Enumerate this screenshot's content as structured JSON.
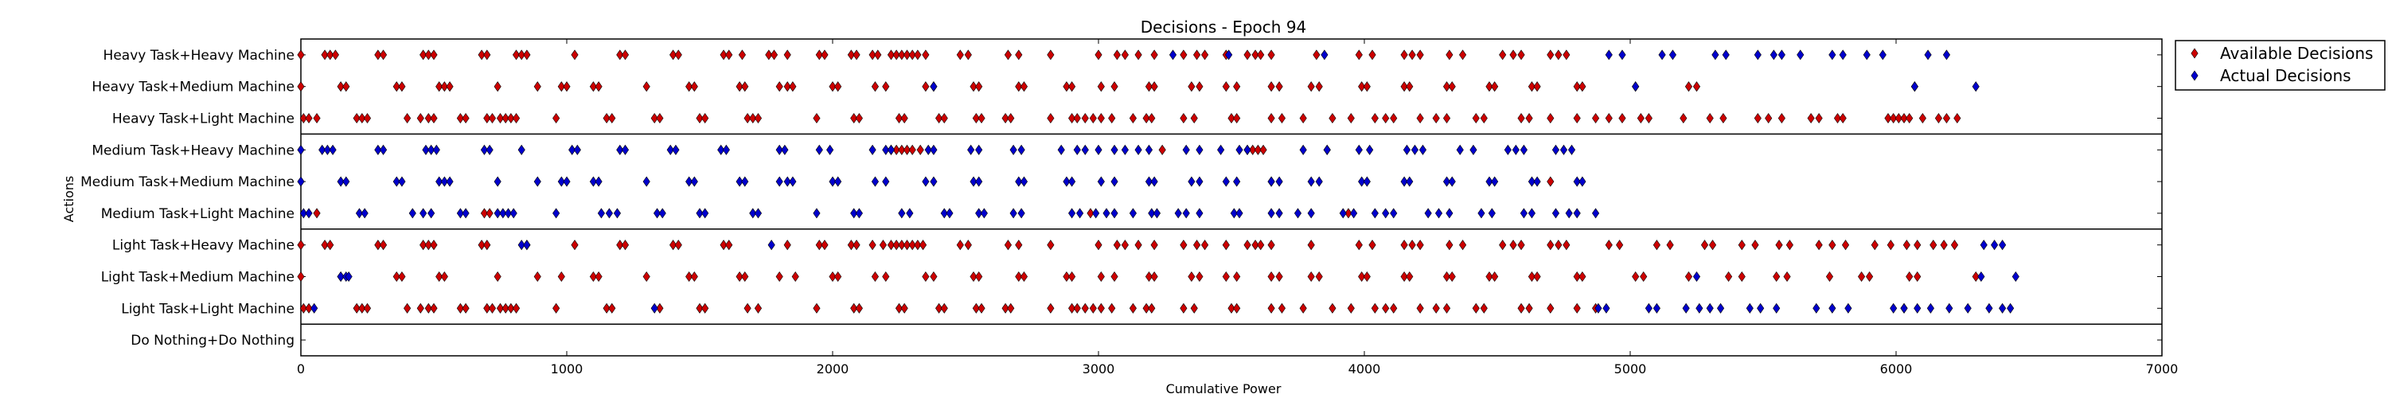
{
  "chart_data": {
    "type": "scatter",
    "title": "Decisions - Epoch 94",
    "xlabel": "Cumulative Power",
    "ylabel": "Actions",
    "xlim": [
      0,
      7000
    ],
    "xticks": [
      "0",
      "1000",
      "2000",
      "3000",
      "4000",
      "5000",
      "6000",
      "7000"
    ],
    "grid": false,
    "legend_position": "outside-right-top",
    "categories": [
      "Heavy Task+Heavy Machine",
      "Heavy Task+Medium Machine",
      "Heavy Task+Light Machine",
      "Medium Task+Heavy Machine",
      "Medium Task+Medium Machine",
      "Medium Task+Light Machine",
      "Light Task+Heavy Machine",
      "Light Task+Medium Machine",
      "Light Task+Light Machine",
      "Do Nothing+Do Nothing"
    ],
    "group_separators_after": [
      "Heavy Task+Light Machine",
      "Medium Task+Light Machine",
      "Light Task+Light Machine"
    ],
    "series": [
      {
        "name": "Available Decisions",
        "color": "#cc0000",
        "marker": "diamond",
        "rows": [
          [
            0,
            90,
            110,
            130,
            290,
            310,
            460,
            480,
            500,
            680,
            700,
            810,
            830,
            850,
            1030,
            1200,
            1220,
            1400,
            1420,
            1590,
            1610,
            1660,
            1760,
            1780,
            1830,
            1950,
            1970,
            2070,
            2090,
            2150,
            2170,
            2220,
            2240,
            2260,
            2280,
            2300,
            2320,
            2350,
            2480,
            2510,
            2660,
            2700,
            2820,
            3000,
            3070,
            3100,
            3150,
            3210,
            3320,
            3370,
            3400,
            3480,
            3560,
            3590,
            3610,
            3650,
            3820,
            3980,
            4030,
            4150,
            4180,
            4210,
            4320,
            4370,
            4520,
            4560,
            4590,
            4700,
            4730,
            4760
          ],
          [
            0,
            150,
            170,
            360,
            380,
            520,
            540,
            560,
            740,
            890,
            980,
            1000,
            1100,
            1120,
            1300,
            1460,
            1480,
            1650,
            1670,
            1800,
            1830,
            1850,
            2000,
            2020,
            2160,
            2200,
            2350,
            2380,
            2530,
            2550,
            2700,
            2720,
            2880,
            2900,
            3010,
            3060,
            3190,
            3210,
            3350,
            3380,
            3480,
            3520,
            3650,
            3680,
            3800,
            3830,
            3990,
            4010,
            4150,
            4170,
            4310,
            4330,
            4470,
            4490,
            4630,
            4650,
            4800,
            4820,
            5020,
            5220,
            5250,
            6070
          ],
          [
            10,
            30,
            60,
            210,
            230,
            250,
            400,
            450,
            480,
            500,
            600,
            620,
            700,
            720,
            750,
            770,
            790,
            810,
            960,
            1150,
            1170,
            1330,
            1350,
            1500,
            1520,
            1680,
            1700,
            1720,
            1940,
            2080,
            2100,
            2250,
            2270,
            2400,
            2420,
            2540,
            2560,
            2650,
            2670,
            2820,
            2900,
            2920,
            2950,
            2980,
            3010,
            3050,
            3130,
            3180,
            3200,
            3320,
            3360,
            3500,
            3520,
            3650,
            3690,
            3770,
            3880,
            3950,
            4040,
            4080,
            4110,
            4210,
            4270,
            4310,
            4420,
            4450,
            4590,
            4620,
            4700,
            4800,
            4870,
            4920,
            4970,
            5040,
            5070,
            5200,
            5300,
            5350,
            5480,
            5520,
            5570,
            5680,
            5710,
            5780,
            5800,
            5970,
            5990,
            6010,
            6030,
            6050,
            6100,
            6160,
            6190,
            6230
          ],
          [
            2220,
            2240,
            2260,
            2280,
            2300,
            2330,
            3240,
            3560,
            3580,
            3600,
            3620,
            3860
          ],
          [
            3650,
            4700
          ],
          [
            60,
            690,
            710,
            2970,
            3940
          ],
          [
            0,
            90,
            110,
            290,
            310,
            460,
            480,
            500,
            680,
            700,
            850,
            1030,
            1200,
            1220,
            1400,
            1420,
            1590,
            1610,
            1830,
            1950,
            1970,
            2070,
            2090,
            2150,
            2190,
            2220,
            2240,
            2260,
            2280,
            2300,
            2320,
            2340,
            2480,
            2510,
            2660,
            2700,
            2820,
            3000,
            3070,
            3100,
            3150,
            3210,
            3320,
            3370,
            3400,
            3480,
            3560,
            3590,
            3610,
            3650,
            3800,
            3980,
            4030,
            4150,
            4180,
            4210,
            4320,
            4370,
            4520,
            4560,
            4590,
            4700,
            4730,
            4760,
            4920,
            4960,
            5100,
            5150,
            5280,
            5310,
            5420,
            5470,
            5560,
            5600,
            5710,
            5760,
            5810,
            5920,
            5980,
            6040,
            6080,
            6140,
            6180,
            6220
          ],
          [
            0,
            150,
            360,
            380,
            520,
            540,
            740,
            890,
            980,
            1100,
            1120,
            1300,
            1460,
            1480,
            1650,
            1670,
            1800,
            1860,
            2000,
            2020,
            2160,
            2200,
            2350,
            2380,
            2530,
            2550,
            2700,
            2720,
            2880,
            2900,
            3010,
            3060,
            3190,
            3210,
            3350,
            3380,
            3480,
            3520,
            3650,
            3680,
            3800,
            3830,
            3990,
            4010,
            4150,
            4170,
            4310,
            4330,
            4470,
            4490,
            4630,
            4650,
            4800,
            4820,
            5020,
            5050,
            5220,
            5370,
            5420,
            5550,
            5590,
            5750,
            5870,
            5900,
            6050,
            6080,
            6300
          ],
          [
            10,
            30,
            210,
            230,
            250,
            400,
            450,
            480,
            500,
            600,
            620,
            700,
            720,
            750,
            770,
            790,
            810,
            960,
            1150,
            1170,
            1350,
            1500,
            1520,
            1680,
            1720,
            1940,
            2080,
            2100,
            2250,
            2270,
            2400,
            2420,
            2540,
            2560,
            2650,
            2670,
            2820,
            2900,
            2920,
            2950,
            2980,
            3010,
            3050,
            3130,
            3180,
            3200,
            3320,
            3360,
            3500,
            3520,
            3650,
            3690,
            3770,
            3880,
            3950,
            4040,
            4080,
            4110,
            4210,
            4270,
            4310,
            4420,
            4450,
            4590,
            4620,
            4700,
            4800,
            4870,
            6030
          ],
          []
        ]
      },
      {
        "name": "Actual Decisions",
        "color": "#0000cc",
        "marker": "diamond",
        "rows": [
          [
            3280,
            3490,
            3850,
            4920,
            4970,
            5120,
            5160,
            5320,
            5360,
            5480,
            5540,
            5570,
            5640,
            5760,
            5800,
            5890,
            5950,
            6120,
            6190
          ],
          [
            2380,
            5020,
            6070,
            6300
          ],
          [],
          [
            0,
            80,
            100,
            120,
            290,
            310,
            470,
            490,
            510,
            690,
            710,
            830,
            1020,
            1040,
            1200,
            1220,
            1390,
            1410,
            1580,
            1600,
            1800,
            1820,
            1950,
            1990,
            2150,
            2200,
            2220,
            2360,
            2380,
            2520,
            2550,
            2680,
            2710,
            2860,
            2920,
            2950,
            3000,
            3060,
            3100,
            3150,
            3190,
            3330,
            3380,
            3460,
            3530,
            3560,
            3770,
            3860,
            3980,
            4020,
            4160,
            4190,
            4220,
            4360,
            4410,
            4540,
            4570,
            4600,
            4720,
            4750,
            4780
          ],
          [
            0,
            150,
            170,
            360,
            380,
            520,
            540,
            560,
            740,
            890,
            980,
            1000,
            1100,
            1120,
            1300,
            1460,
            1480,
            1650,
            1670,
            1800,
            1830,
            1850,
            2000,
            2020,
            2160,
            2200,
            2350,
            2380,
            2530,
            2550,
            2700,
            2720,
            2880,
            2900,
            3010,
            3060,
            3190,
            3210,
            3350,
            3380,
            3480,
            3520,
            3650,
            3680,
            3800,
            3830,
            3990,
            4010,
            4150,
            4170,
            4310,
            4330,
            4470,
            4490,
            4630,
            4650,
            4800,
            4820
          ],
          [
            10,
            30,
            220,
            240,
            420,
            460,
            490,
            600,
            620,
            740,
            760,
            780,
            800,
            960,
            1130,
            1160,
            1190,
            1340,
            1360,
            1500,
            1520,
            1700,
            1720,
            1940,
            2080,
            2100,
            2260,
            2290,
            2420,
            2440,
            2550,
            2570,
            2680,
            2710,
            2900,
            2930,
            2990,
            3030,
            3060,
            3130,
            3200,
            3220,
            3300,
            3330,
            3380,
            3510,
            3530,
            3650,
            3680,
            3750,
            3800,
            3920,
            3960,
            4040,
            4080,
            4110,
            4240,
            4280,
            4320,
            4440,
            4480,
            4600,
            4630,
            4720,
            4770,
            4800,
            4870
          ],
          [
            830,
            850,
            1770,
            6330,
            6370,
            6400
          ],
          [
            150,
            170,
            180,
            5250,
            6320,
            6450
          ],
          [
            50,
            1330,
            4880,
            4910,
            5070,
            5100,
            5210,
            5260,
            5300,
            5340,
            5450,
            5490,
            5550,
            5700,
            5760,
            5820,
            5990,
            6030,
            6080,
            6130,
            6200,
            6270,
            6350,
            6400,
            6430
          ],
          []
        ]
      }
    ]
  }
}
